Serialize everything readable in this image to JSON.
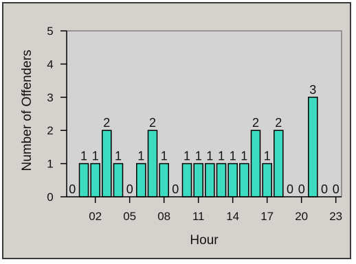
{
  "chart_data": {
    "type": "bar",
    "xlabel": "Hour",
    "ylabel": "Number of Offenders",
    "ylim": [
      0,
      5
    ],
    "yticks": [
      0,
      1,
      2,
      3,
      4,
      5
    ],
    "xticks": [
      "02",
      "05",
      "08",
      "11",
      "14",
      "17",
      "20",
      "23"
    ],
    "categories": [
      "00",
      "01",
      "02",
      "03",
      "04",
      "05",
      "06",
      "07",
      "08",
      "09",
      "10",
      "11",
      "12",
      "13",
      "14",
      "15",
      "16",
      "17",
      "18",
      "19",
      "20",
      "21",
      "22",
      "23"
    ],
    "values": [
      0,
      1,
      1,
      2,
      1,
      0,
      1,
      2,
      1,
      0,
      1,
      1,
      1,
      1,
      1,
      1,
      2,
      1,
      2,
      0,
      0,
      3,
      0,
      0
    ],
    "bar_color": "#3ddbc0",
    "plot_bg": "#d3d3d3",
    "frame_bg": "#d5d1cc"
  }
}
